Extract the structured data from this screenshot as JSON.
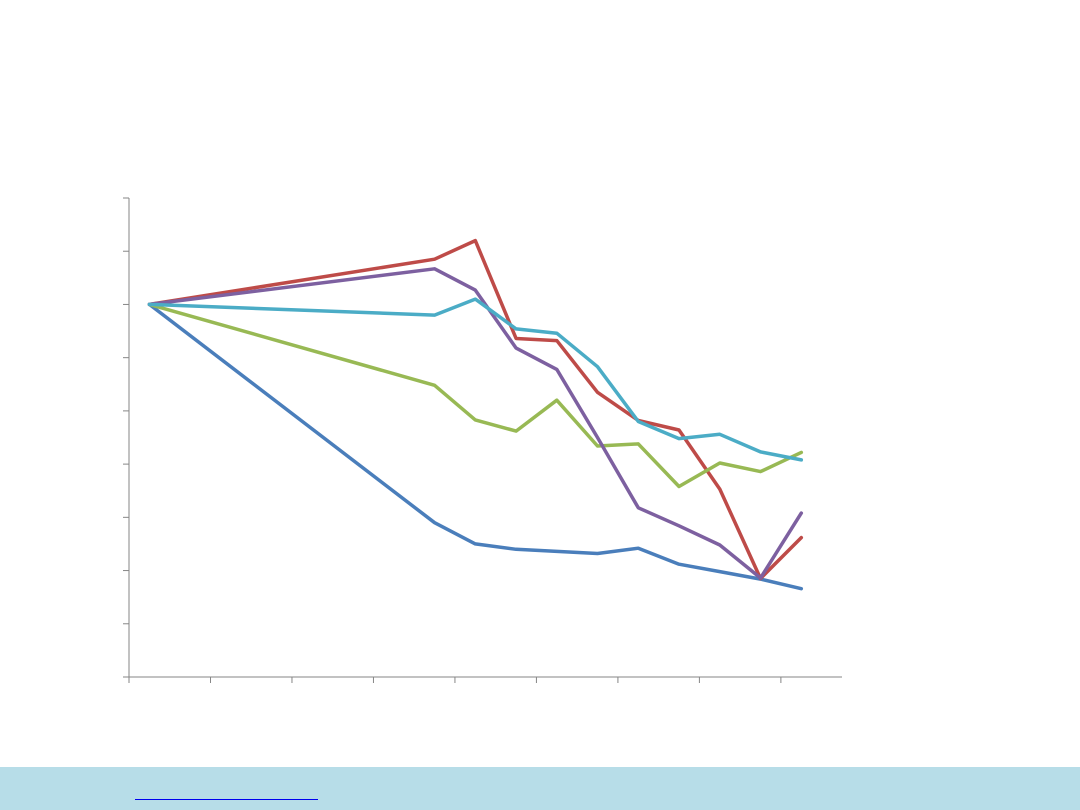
{
  "chart_data": {
    "type": "line",
    "title": "",
    "xlabel": "",
    "ylabel": "",
    "x": [
      0,
      3.5,
      4,
      4.5,
      5,
      5.5,
      6,
      6.5,
      7,
      7.5,
      8
    ],
    "xlim": [
      -0.25,
      8.5
    ],
    "ylim": [
      0,
      90
    ],
    "x_ticks": [
      -0.25,
      0.75,
      1.75,
      2.75,
      3.75,
      4.75,
      5.75,
      6.75,
      7.75
    ],
    "y_ticks": [
      0,
      10,
      20,
      30,
      40,
      50,
      60,
      70,
      80,
      90
    ],
    "tick_labels_visible": false,
    "grid": false,
    "legend": "none",
    "series": [
      {
        "color": "#4A7EBB",
        "values": [
          70,
          29,
          25,
          24,
          23.6,
          23.2,
          24.2,
          21.2,
          19.8,
          18.4,
          16.6
        ]
      },
      {
        "color": "#BE4B48",
        "values": [
          70,
          78.5,
          82,
          63.6,
          63.2,
          53.5,
          48.2,
          46.4,
          35.3,
          18.5,
          26.2
        ]
      },
      {
        "color": "#98B954",
        "values": [
          70,
          54.8,
          48.3,
          46.2,
          52,
          43.4,
          43.8,
          35.8,
          40.2,
          38.6,
          42.2
        ]
      },
      {
        "color": "#7D60A0",
        "values": [
          70,
          76.7,
          72.7,
          61.8,
          57.8,
          45,
          31.8,
          28.4,
          24.8,
          18.6,
          30.8
        ]
      },
      {
        "color": "#4BACC6",
        "values": [
          70,
          68,
          71,
          65.4,
          64.6,
          58.3,
          48,
          44.8,
          45.6,
          42.3,
          40.8
        ]
      }
    ]
  },
  "colors": {
    "axis": "#868686",
    "footer_background": "#b7dde8"
  }
}
